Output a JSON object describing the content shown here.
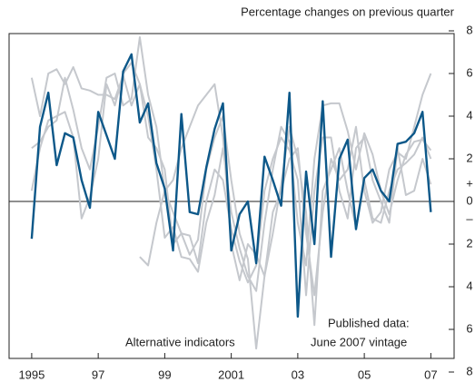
{
  "chart_data": {
    "type": "line",
    "y_label": "Percentage changes on previous quarter",
    "y_sign_labels": [
      "+",
      "–"
    ],
    "annotations": [
      "Alternative indicators",
      "Published data:",
      "June 2007 vintage"
    ],
    "x": [
      1995,
      1995.25,
      1995.5,
      1995.75,
      1996,
      1996.25,
      1996.5,
      1996.75,
      1997,
      1997.25,
      1997.5,
      1997.75,
      1998,
      1998.25,
      1998.5,
      1998.75,
      1999,
      1999.25,
      1999.5,
      1999.75,
      2000,
      2000.25,
      2000.5,
      2000.75,
      2001,
      2001.25,
      2001.5,
      2001.75,
      2002,
      2002.25,
      2002.5,
      2002.75,
      2003,
      2003.25,
      2003.5,
      2003.75,
      2004,
      2004.25,
      2004.5,
      2004.75,
      2005,
      2005.25,
      2005.5,
      2005.75,
      2006,
      2006.25,
      2006.5,
      2006.75,
      2007
    ],
    "xlim": [
      1994.32,
      2007.7
    ],
    "xticks": [
      1995,
      {
        "value": 1997,
        "label": "97"
      },
      {
        "value": 1999,
        "label": "99"
      },
      2001,
      {
        "value": 2003,
        "label": "03"
      },
      {
        "value": 2005,
        "label": "05"
      },
      {
        "value": 2007,
        "label": "07"
      }
    ],
    "ylim": [
      -8,
      8
    ],
    "yticks": [
      8,
      6,
      4,
      2,
      0,
      {
        "value": -2,
        "label": "2"
      },
      {
        "value": -4,
        "label": "4"
      },
      {
        "value": -6,
        "label": "6"
      },
      {
        "value": -8,
        "label": "8"
      }
    ],
    "zero_line": true,
    "series": [
      {
        "color": "#c5c8cd",
        "values": [
          5.8,
          4.0,
          6.0,
          6.2,
          5.5,
          6.3,
          5.3,
          5.2,
          5.0,
          5.0,
          4.8,
          5.9,
          4.5,
          5.5,
          4.0,
          1.5,
          -1.7,
          -1.2,
          -2.6,
          -2.7,
          -3.3,
          -1.0,
          0.3,
          2.5,
          -0.5,
          -2.2,
          -3.5,
          -4.2,
          -1.0,
          1.5,
          3.5,
          2.8,
          -1.0,
          -3.0,
          2.0,
          4.5,
          4.6,
          4.6,
          3.3,
          1.5,
          3.2,
          2.2,
          0.5,
          -0.6,
          1.0,
          2.2,
          2.8,
          2.9,
          2.4
        ]
      },
      {
        "color": "#c5c8cd",
        "values": [
          2.5,
          2.8,
          3.5,
          3.8,
          5.8,
          4.3,
          2.5,
          1.5,
          3.5,
          5.8,
          6.0,
          4.5,
          4.8,
          7.7,
          5.0,
          3.5,
          0.5,
          -0.5,
          -1.5,
          -2.5,
          -1.8,
          1.5,
          3.0,
          4.0,
          1.0,
          -1.5,
          -2.7,
          -6.9,
          -3.5,
          -0.5,
          0.5,
          2.0,
          2.5,
          -1.5,
          -4.4,
          -0.5,
          2.0,
          1.0,
          1.5,
          3.5,
          0.5,
          -1.0,
          -0.5,
          1.5,
          2.3,
          2.0,
          3.5,
          5.0,
          6.0
        ]
      },
      {
        "color": "#c5c8cd",
        "values": [
          0.5,
          2.5,
          3.8,
          4.0,
          4.2,
          3.0,
          -0.8,
          0.2,
          2.0,
          5.5,
          4.5,
          6.0,
          6.5,
          5.5,
          3.0,
          2.5,
          1.5,
          -2.0,
          -1.5,
          -1.6,
          -2.9,
          0.0,
          1.5,
          1.0,
          -1.3,
          -2.8,
          -3.8,
          -3.0,
          0.5,
          2.0,
          3.0,
          2.4,
          1.0,
          -4.4,
          0.5,
          3.0,
          3.0,
          0.5,
          -0.8,
          2.5,
          3.0,
          1.0,
          0.0,
          -1.0,
          2.5,
          0.3,
          0.5,
          2.0,
          0.8
        ]
      },
      {
        "color": "#c5c8cd",
        "values": [
          null,
          null,
          null,
          null,
          null,
          null,
          null,
          null,
          null,
          null,
          null,
          null,
          null,
          -2.6,
          -3.0,
          -1.0,
          0.5,
          1.0,
          2.5,
          3.5,
          4.5,
          5.0,
          5.5,
          3.0,
          -2.0,
          -3.7,
          -2.0,
          -2.5,
          -3.5,
          -1.5,
          0.8,
          3.5,
          2.0,
          -0.5,
          -5.8,
          0.5,
          1.5,
          2.5,
          0.5,
          -1.2,
          1.0,
          -0.8,
          -1.0,
          0.5,
          1.5,
          1.8,
          2.2,
          3.0,
          2.0
        ]
      },
      {
        "color": "#0d5889",
        "values": [
          -1.75,
          3.5,
          5.1,
          1.7,
          3.2,
          3.0,
          1.0,
          -0.3,
          4.2,
          3.1,
          2.0,
          6.1,
          6.9,
          3.7,
          4.6,
          1.8,
          0.6,
          -2.3,
          4.1,
          -0.5,
          -0.6,
          1.6,
          3.4,
          4.6,
          -2.3,
          -0.6,
          0.0,
          -2.9,
          2.1,
          1.0,
          -0.2,
          5.1,
          -5.4,
          1.4,
          -2.0,
          4.7,
          -2.6,
          2.0,
          2.9,
          -1.3,
          1.1,
          1.5,
          0.5,
          0.0,
          2.7,
          2.8,
          3.2,
          4.2,
          -0.5
        ]
      }
    ]
  }
}
